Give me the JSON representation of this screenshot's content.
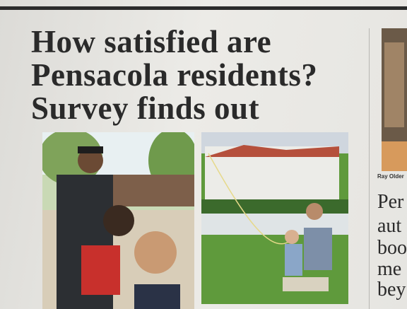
{
  "headline": {
    "lines": [
      "How satisfied are",
      "Pensacola residents?",
      "Survey finds out"
    ]
  },
  "side_column": {
    "photo_caption": "Ray Older",
    "text_lines": [
      "Per",
      "aut",
      "boo",
      "me",
      "bey"
    ]
  }
}
